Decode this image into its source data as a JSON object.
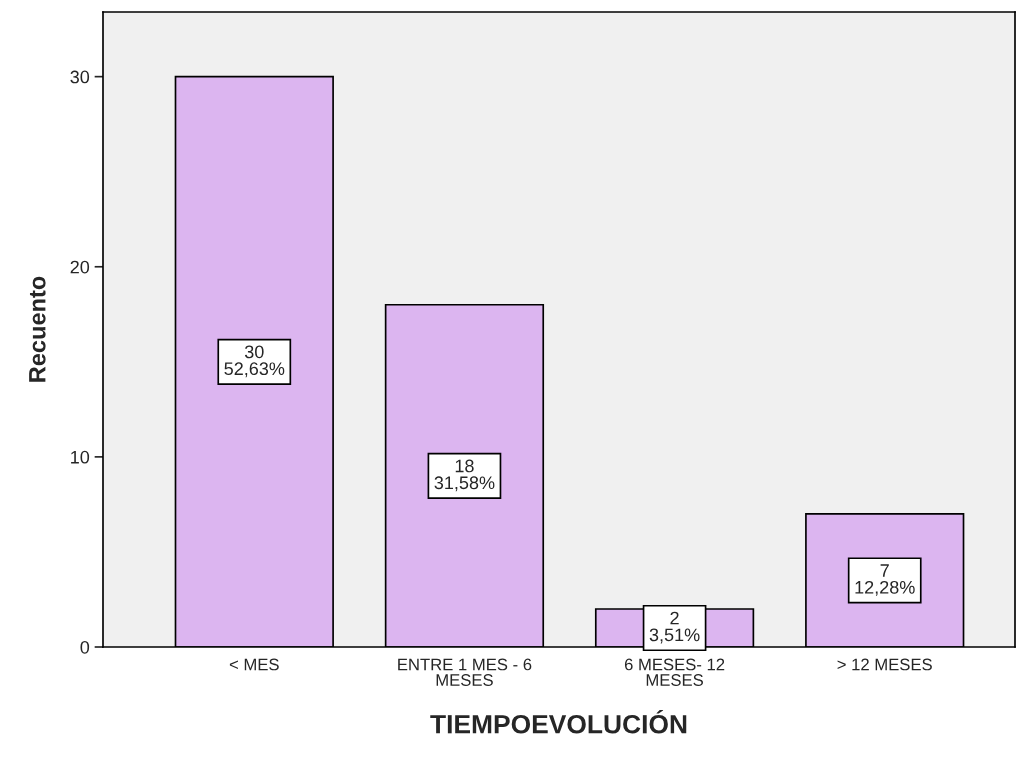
{
  "chart_data": {
    "type": "bar",
    "xlabel": "TIEMPOEVOLUCIÓN",
    "ylabel": "Recuento",
    "categories": [
      "< MES",
      "ENTRE 1 MES - 6\nMESES",
      "6 MESES- 12\nMESES",
      "> 12 MESES"
    ],
    "values": [
      30,
      18,
      2,
      7
    ],
    "value_labels": [
      "30\n52,63%",
      "18\n31,58%",
      "2\n3,51%",
      "7\n12,28%"
    ],
    "color": "#dcb5f0",
    "ylim": [
      0,
      33.4
    ],
    "yticks": [
      0,
      10,
      20,
      30
    ],
    "grid": false,
    "legend": false
  }
}
